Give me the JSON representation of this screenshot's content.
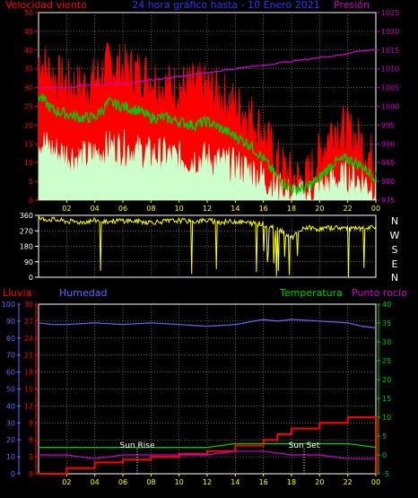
{
  "header": {
    "wind_label": "Velocidad viento",
    "title": "24 hora gráfico hasta - 10 Enero 2021",
    "pressure_label": "Presión"
  },
  "direction_labels": [
    "N",
    "W",
    "S",
    "E",
    "N"
  ],
  "bottom_header": {
    "rain_label": "Lluvia",
    "humidity_label": "Humedad",
    "temperature_label": "Temperatura",
    "dewpoint_label": "Punto rocío"
  },
  "annotations": {
    "sunrise": "Sun Rise",
    "sunset": "Sun Set"
  },
  "colors": {
    "wind_gust": "#ff0000",
    "wind_avg_green": "#00cc00",
    "wind_speed": "#ccffcc",
    "pressure": "#cc00cc",
    "direction": "#ffff00",
    "rain": "#ff0000",
    "humidity": "#6666ff",
    "temperature": "#00cc00",
    "dewpoint": "#cc00cc",
    "axis_left": "#ff0000",
    "axis_right": "#cc00cc",
    "x_ticks": "#ffff00"
  },
  "chart_data": [
    {
      "type": "line",
      "name": "wind-pressure",
      "x_ticks": [
        "02",
        "04",
        "06",
        "08",
        "10",
        "12",
        "14",
        "16",
        "18",
        "20",
        "22",
        "00"
      ],
      "x_range": [
        0,
        24
      ],
      "y_left_ticks": [
        "0",
        "5",
        "10",
        "15",
        "20",
        "25",
        "30",
        "35",
        "40",
        "45",
        "50"
      ],
      "y_left_range": [
        0,
        50
      ],
      "y_right_ticks": [
        "975",
        "980",
        "985",
        "990",
        "995",
        "1000",
        "1005",
        "1010",
        "1015",
        "1020",
        "1025"
      ],
      "y_right_range": [
        975,
        1025
      ],
      "series": [
        {
          "key": "gust",
          "x": [
            0,
            1,
            2,
            3,
            4,
            5,
            6,
            7,
            8,
            9,
            10,
            11,
            12,
            13,
            14,
            15,
            16,
            17,
            18,
            19,
            20,
            21,
            22,
            23,
            24
          ],
          "values": [
            38,
            33,
            31,
            30,
            32,
            36,
            35,
            34,
            33,
            30,
            30,
            30,
            30,
            28,
            25,
            23,
            18,
            10,
            6,
            5,
            12,
            20,
            18,
            15,
            10
          ]
        },
        {
          "key": "avg",
          "x": [
            0,
            1,
            2,
            3,
            4,
            5,
            6,
            7,
            8,
            9,
            10,
            11,
            12,
            13,
            14,
            15,
            16,
            17,
            18,
            19,
            20,
            21,
            22,
            23,
            24
          ],
          "values": [
            28,
            24,
            23,
            22,
            22,
            26,
            25,
            24,
            22,
            22,
            21,
            20,
            21,
            19,
            17,
            15,
            11,
            6,
            3,
            3,
            6,
            10,
            11,
            9,
            6
          ]
        },
        {
          "key": "speed",
          "x": [
            0,
            1,
            2,
            3,
            4,
            5,
            6,
            7,
            8,
            9,
            10,
            11,
            12,
            13,
            14,
            15,
            16,
            17,
            18,
            19,
            20,
            21,
            22,
            23,
            24
          ],
          "values": [
            16,
            13,
            12,
            11,
            12,
            14,
            14,
            13,
            12,
            12,
            11,
            11,
            11,
            10,
            9,
            8,
            6,
            3,
            1,
            1,
            3,
            5,
            6,
            5,
            3
          ]
        },
        {
          "key": "pressure",
          "x": [
            0,
            2,
            4,
            6,
            8,
            10,
            12,
            14,
            16,
            18,
            20,
            22,
            23,
            24
          ],
          "values": [
            1005,
            1005,
            1006,
            1006,
            1007,
            1008,
            1009,
            1010,
            1011,
            1012,
            1013,
            1014,
            1015,
            1015
          ]
        }
      ]
    },
    {
      "type": "scatter",
      "name": "wind-direction",
      "x_range": [
        0,
        24
      ],
      "y_ticks": [
        "0",
        "90",
        "180",
        "270",
        "360"
      ],
      "y_range": [
        0,
        360
      ],
      "x": [
        0,
        1,
        2,
        3,
        4,
        5,
        6,
        7,
        8,
        9,
        10,
        11,
        12,
        13,
        14,
        15,
        16,
        17,
        18,
        19,
        20,
        21,
        22,
        23,
        24
      ],
      "values": [
        340,
        335,
        325,
        320,
        330,
        325,
        330,
        325,
        320,
        325,
        330,
        325,
        330,
        320,
        325,
        315,
        310,
        280,
        230,
        290,
        280,
        290,
        285,
        280,
        290
      ]
    },
    {
      "type": "line",
      "name": "rain-humidity-temperature",
      "x_ticks": [
        "02",
        "04",
        "06",
        "08",
        "10",
        "12",
        "14",
        "16",
        "18",
        "20",
        "22",
        "00"
      ],
      "x_range": [
        0,
        24
      ],
      "y_humidity_ticks": [
        "0",
        "10",
        "20",
        "30",
        "40",
        "50",
        "60",
        "70",
        "80",
        "90",
        "100"
      ],
      "y_humidity_range": [
        0,
        100
      ],
      "y_rain_ticks": [
        "0",
        "3",
        "6",
        "9",
        "12",
        "15",
        "18",
        "21",
        "24",
        "27",
        "30"
      ],
      "y_rain_range": [
        0,
        30
      ],
      "y_temp_ticks": [
        "-5",
        "0",
        "5",
        "10",
        "15",
        "20",
        "25",
        "30",
        "35",
        "40"
      ],
      "y_temp_range": [
        -5,
        40
      ],
      "series": [
        {
          "key": "humidity",
          "x": [
            0,
            1,
            2,
            4,
            6,
            8,
            10,
            12,
            14,
            16,
            17,
            18,
            20,
            22,
            23,
            24
          ],
          "values": [
            89,
            88,
            88,
            89,
            88,
            89,
            88,
            87,
            88,
            91,
            90,
            91,
            90,
            89,
            87,
            86
          ]
        },
        {
          "key": "rain",
          "x": [
            0,
            2,
            4,
            6,
            8,
            10,
            12,
            14,
            16,
            17,
            18,
            20,
            22,
            23,
            24,
            24.05
          ],
          "values": [
            0,
            1,
            2,
            2.5,
            3,
            3.5,
            4,
            5,
            6,
            7,
            8,
            9,
            10,
            10,
            10,
            0
          ]
        },
        {
          "key": "temperature",
          "x": [
            0,
            2,
            4,
            6,
            8,
            10,
            12,
            14,
            16,
            18,
            20,
            22,
            24
          ],
          "values": [
            2,
            2,
            2,
            2,
            2,
            2,
            2,
            3,
            3,
            3,
            3,
            3,
            2
          ]
        },
        {
          "key": "dewpoint",
          "x": [
            0,
            2,
            4,
            6,
            8,
            10,
            12,
            14,
            16,
            18,
            20,
            22,
            24
          ],
          "values": [
            0,
            0,
            -1,
            0,
            0,
            0,
            0,
            1,
            1,
            0,
            0,
            -1,
            -1
          ]
        }
      ]
    }
  ]
}
